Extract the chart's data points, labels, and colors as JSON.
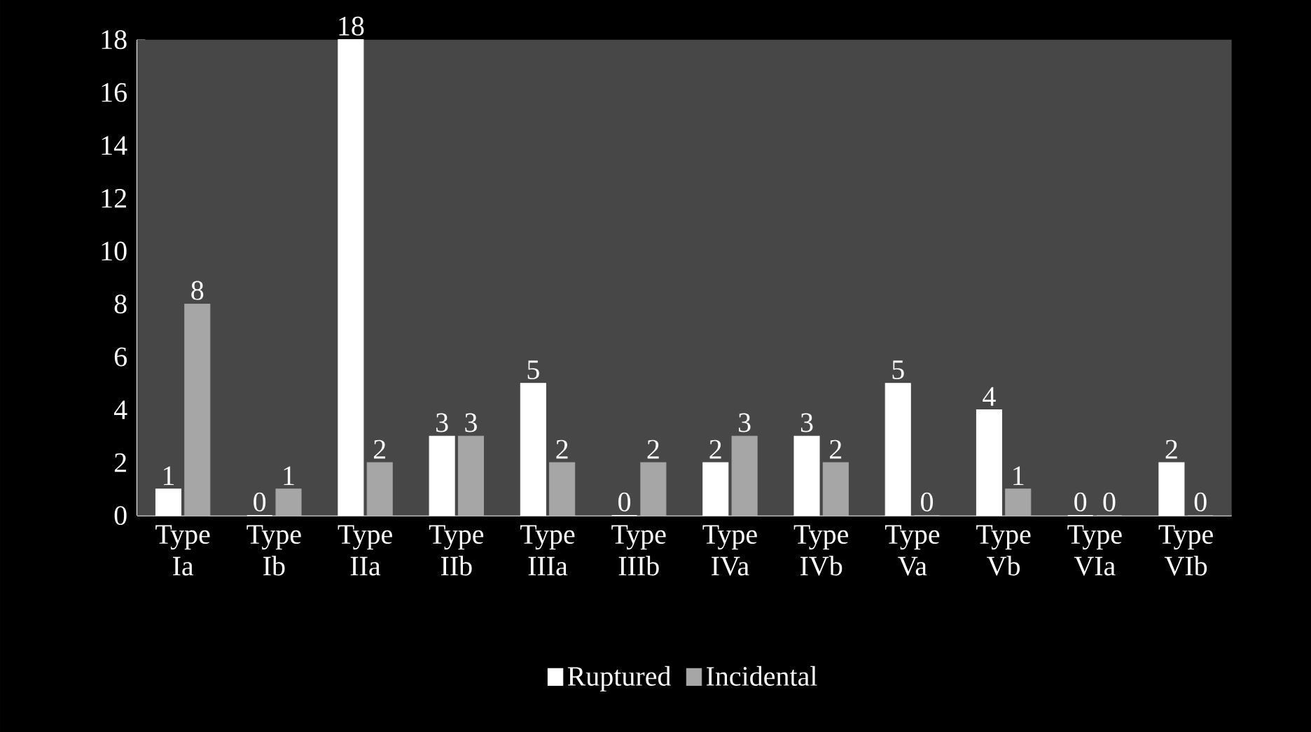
{
  "chart_data": {
    "type": "bar",
    "categories": [
      "Type Ia",
      "Type Ib",
      "Type IIa",
      "Type IIb",
      "Type IIIa",
      "Type IIIb",
      "Type IVa",
      "Type IVb",
      "Type Va",
      "Type Vb",
      "Type VIa",
      "Type VIb"
    ],
    "series": [
      {
        "name": "Ruptured",
        "color": "#ffffff",
        "values": [
          1,
          0,
          18,
          3,
          5,
          0,
          2,
          3,
          5,
          4,
          0,
          2
        ]
      },
      {
        "name": "Incidental",
        "color": "#a6a6a6",
        "values": [
          8,
          1,
          2,
          3,
          2,
          2,
          3,
          2,
          0,
          1,
          0,
          0
        ]
      }
    ],
    "ylim": [
      0,
      18
    ],
    "yticks": [
      0,
      2,
      4,
      6,
      8,
      10,
      12,
      14,
      16,
      18
    ],
    "data_labels": true,
    "legend": "bottom"
  }
}
